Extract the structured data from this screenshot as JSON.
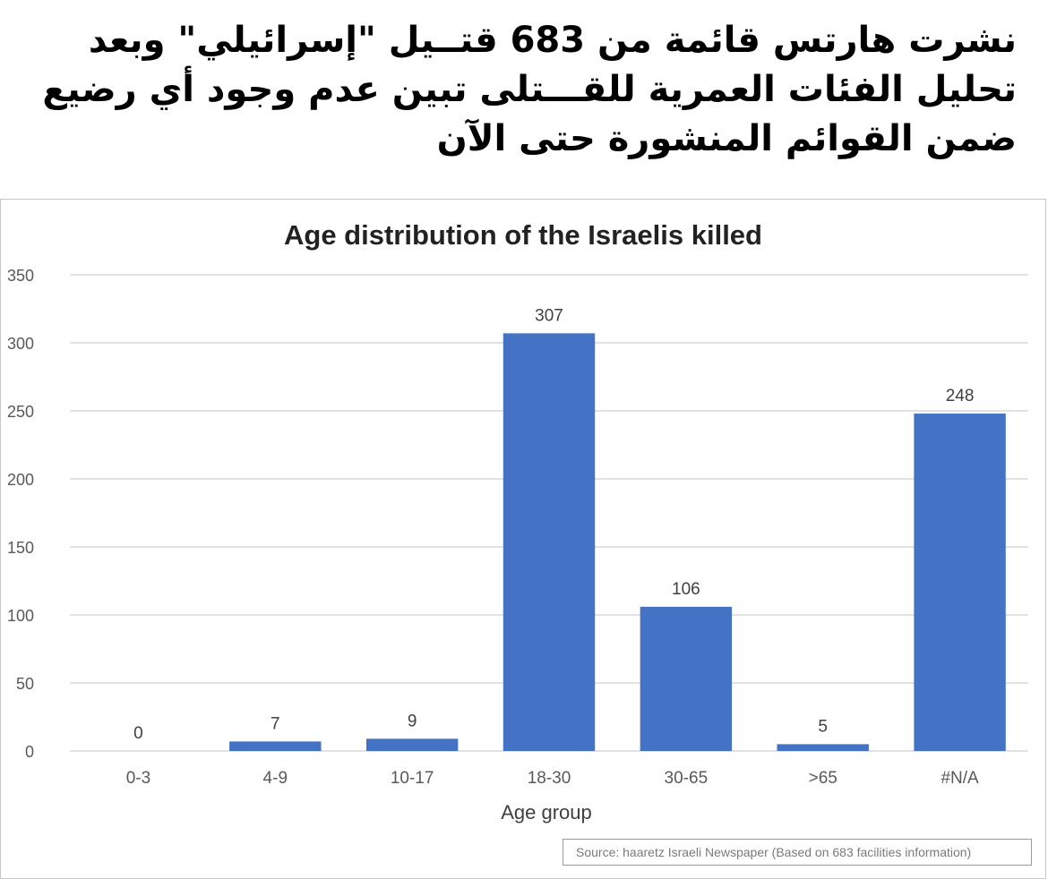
{
  "header": {
    "lines": [
      "نشرت هارتس قائمة من 683 قتــيل \"إسرائيلي\" وبعد",
      "تحليل الفئات العمرية للقـــتلى تبين عدم وجود أي رضيع",
      "ضمن القوائم المنشورة حتى الآن"
    ]
  },
  "chart_data": {
    "type": "bar",
    "title": "Age distribution of the Israelis killed",
    "xlabel": "Age group",
    "ylabel": "",
    "categories": [
      "0-3",
      "4-9",
      "10-17",
      "18-30",
      "30-65",
      ">65",
      "#N/A"
    ],
    "values": [
      0,
      7,
      9,
      307,
      106,
      5,
      248
    ],
    "ylim": [
      0,
      350
    ],
    "yticks": [
      0,
      50,
      100,
      150,
      200,
      250,
      300,
      350
    ],
    "grid": true,
    "bar_color": "#4472c4",
    "grid_color": "#d9d9d9"
  },
  "source": "Source: haaretz Israeli Newspaper (Based on 683 facilities information)"
}
